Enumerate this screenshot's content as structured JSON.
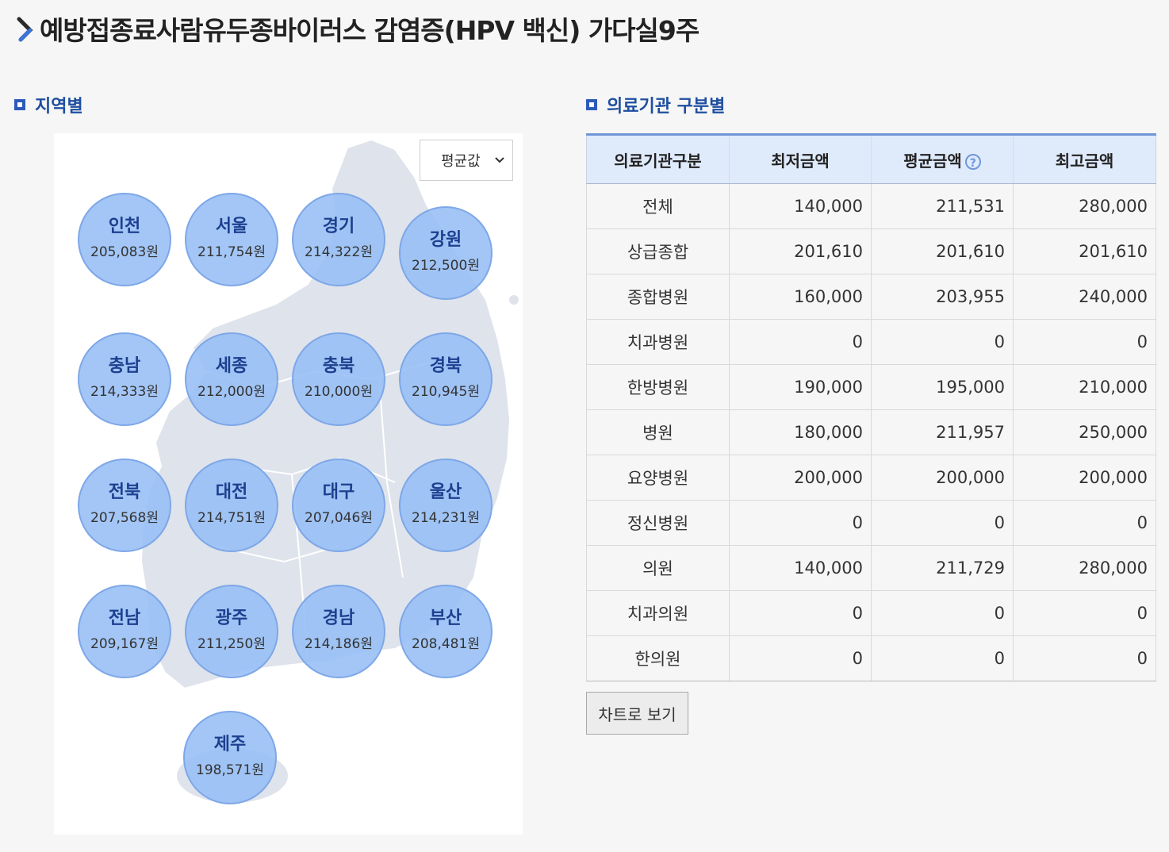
{
  "page": {
    "title": "예방접종료사람유두종바이러스 감염증(HPV 백신) 가다실9주"
  },
  "region": {
    "heading": "지역별",
    "select": {
      "value": "평균값"
    },
    "items": [
      {
        "name": "인천",
        "value": "205,083원"
      },
      {
        "name": "서울",
        "value": "211,754원"
      },
      {
        "name": "경기",
        "value": "214,322원"
      },
      {
        "name": "강원",
        "value": "212,500원"
      },
      {
        "name": "충남",
        "value": "214,333원"
      },
      {
        "name": "세종",
        "value": "212,000원"
      },
      {
        "name": "충북",
        "value": "210,000원"
      },
      {
        "name": "경북",
        "value": "210,945원"
      },
      {
        "name": "전북",
        "value": "207,568원"
      },
      {
        "name": "대전",
        "value": "214,751원"
      },
      {
        "name": "대구",
        "value": "207,046원"
      },
      {
        "name": "울산",
        "value": "214,231원"
      },
      {
        "name": "전남",
        "value": "209,167원"
      },
      {
        "name": "광주",
        "value": "211,250원"
      },
      {
        "name": "경남",
        "value": "214,186원"
      },
      {
        "name": "부산",
        "value": "208,481원"
      },
      {
        "name": "제주",
        "value": "198,571원"
      }
    ]
  },
  "institution": {
    "heading": "의료기관 구분별",
    "headers": [
      "의료기관구분",
      "최저금액",
      "평균금액",
      "최고금액"
    ],
    "help_icon_label": "?",
    "rows": [
      {
        "name": "전체",
        "min": "140,000",
        "avg": "211,531",
        "max": "280,000"
      },
      {
        "name": "상급종합",
        "min": "201,610",
        "avg": "201,610",
        "max": "201,610"
      },
      {
        "name": "종합병원",
        "min": "160,000",
        "avg": "203,955",
        "max": "240,000"
      },
      {
        "name": "치과병원",
        "min": "0",
        "avg": "0",
        "max": "0"
      },
      {
        "name": "한방병원",
        "min": "190,000",
        "avg": "195,000",
        "max": "210,000"
      },
      {
        "name": "병원",
        "min": "180,000",
        "avg": "211,957",
        "max": "250,000"
      },
      {
        "name": "요양병원",
        "min": "200,000",
        "avg": "200,000",
        "max": "200,000"
      },
      {
        "name": "정신병원",
        "min": "0",
        "avg": "0",
        "max": "0"
      },
      {
        "name": "의원",
        "min": "140,000",
        "avg": "211,729",
        "max": "280,000"
      },
      {
        "name": "치과의원",
        "min": "0",
        "avg": "0",
        "max": "0"
      },
      {
        "name": "한의원",
        "min": "0",
        "avg": "0",
        "max": "0"
      }
    ],
    "chart_button_label": "차트로 보기"
  },
  "colors": {
    "accent": "#2d5bb9",
    "bubble": "#96bef5",
    "header_bg": "#dfeafb"
  }
}
